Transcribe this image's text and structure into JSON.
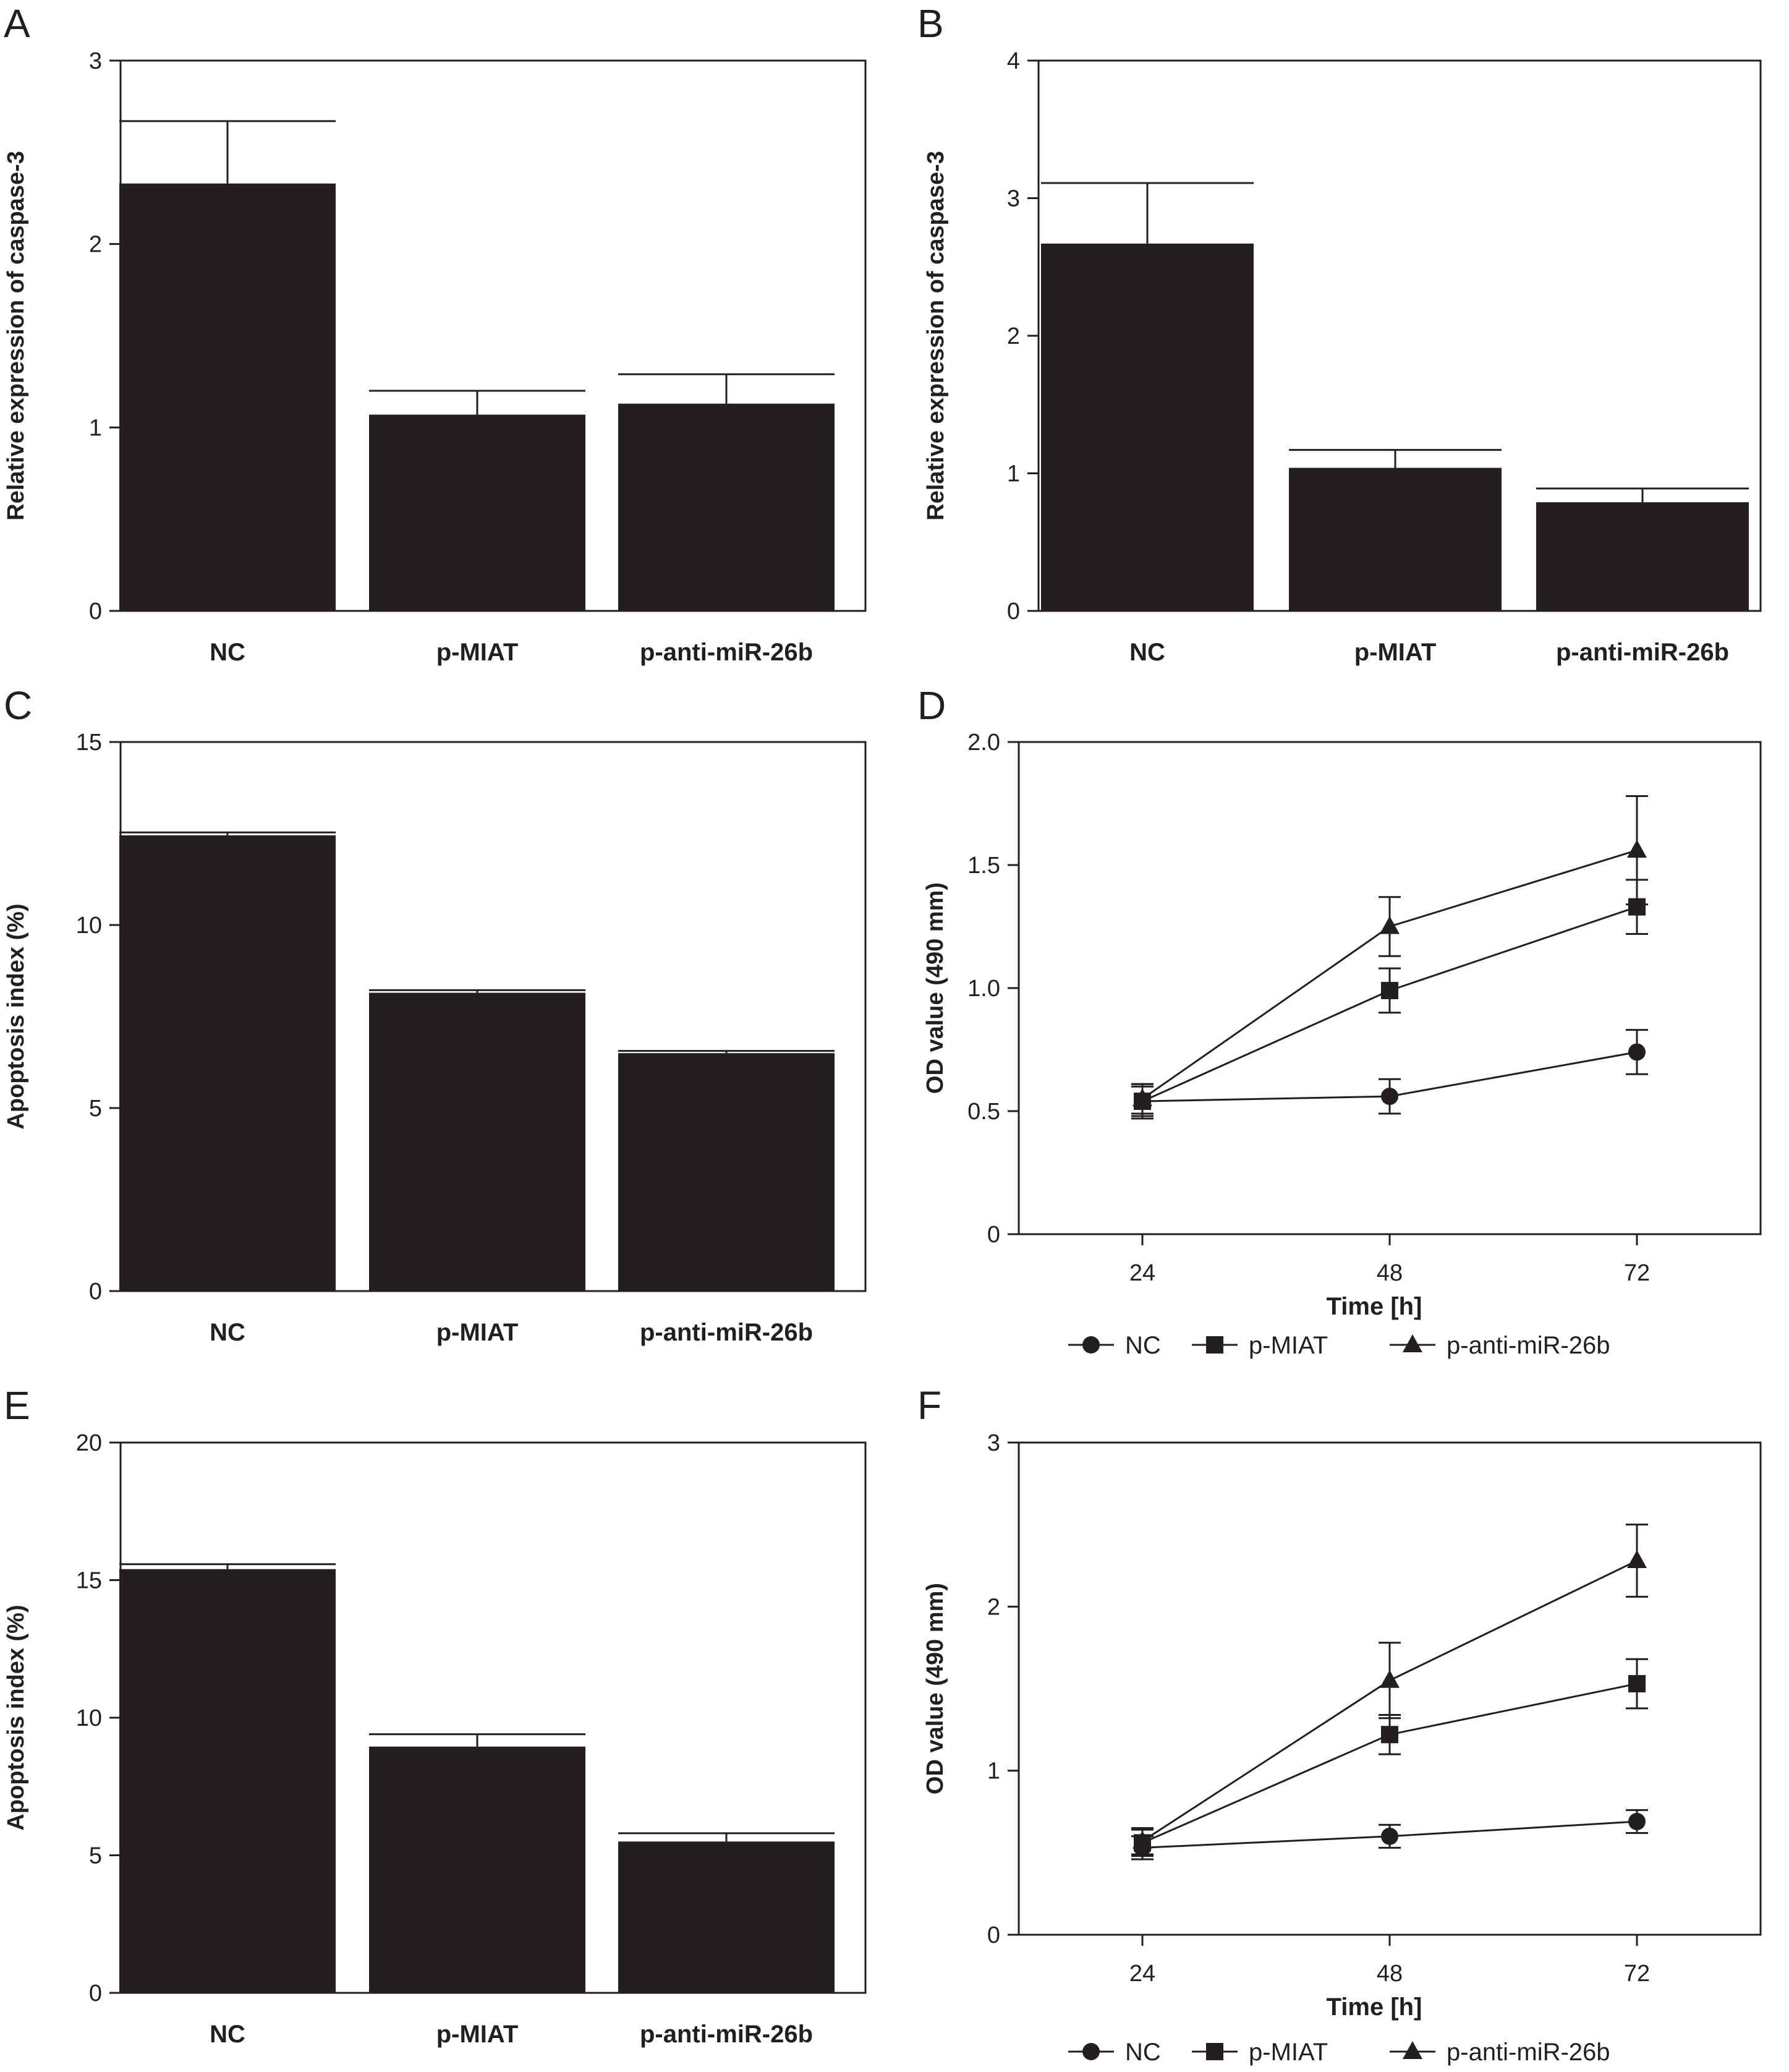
{
  "colors": {
    "bar": "#231f20",
    "axis": "#231f20",
    "background": "#ffffff"
  },
  "chart_data": [
    {
      "panel": "A",
      "type": "bar",
      "categories": [
        "NC",
        "p-MIAT",
        "p-anti-miR-26b"
      ],
      "values": [
        2.33,
        1.07,
        1.13
      ],
      "errors": [
        0.34,
        0.13,
        0.16
      ],
      "ylabel": "Relative expression of caspase-3",
      "xlabel": "",
      "ylim": [
        0,
        3
      ],
      "yticks": [
        "0",
        "1",
        "2",
        "3"
      ],
      "grid": false
    },
    {
      "panel": "B",
      "type": "bar",
      "categories": [
        "NC",
        "p-MIAT",
        "p-anti-miR-26b"
      ],
      "values": [
        2.67,
        1.04,
        0.79
      ],
      "errors": [
        0.44,
        0.13,
        0.1
      ],
      "ylabel": "Relative expression of caspase-3",
      "xlabel": "",
      "ylim": [
        0,
        4
      ],
      "yticks": [
        "0",
        "1",
        "2",
        "3",
        "4"
      ],
      "grid": false
    },
    {
      "panel": "C",
      "type": "bar",
      "categories": [
        "NC",
        "p-MIAT",
        "p-anti-miR-26b"
      ],
      "values": [
        12.45,
        8.15,
        6.5
      ],
      "errors": [
        0.08,
        0.07,
        0.06
      ],
      "ylabel": "Apoptosis index (%)",
      "xlabel": "",
      "ylim": [
        0,
        15
      ],
      "yticks": [
        "0",
        "5",
        "10",
        "15"
      ],
      "grid": false
    },
    {
      "panel": "D",
      "type": "line",
      "x": [
        24,
        48,
        72
      ],
      "xticks": [
        "24",
        "48",
        "72"
      ],
      "xlim": [
        12,
        84
      ],
      "series": [
        {
          "name": "NC",
          "marker": "circle",
          "values": [
            0.54,
            0.56,
            0.74
          ],
          "errors": [
            0.07,
            0.07,
            0.09
          ]
        },
        {
          "name": "p-MIAT",
          "marker": "square",
          "values": [
            0.54,
            0.99,
            1.33
          ],
          "errors": [
            0.06,
            0.09,
            0.11
          ]
        },
        {
          "name": "p-anti-miR-26b",
          "marker": "triangle",
          "values": [
            0.55,
            1.25,
            1.56
          ],
          "errors": [
            0.06,
            0.12,
            0.22
          ]
        }
      ],
      "ylabel": "OD value (490 mm)",
      "xlabel": "Time [h]",
      "ylim": [
        0,
        2
      ],
      "yticks": [
        "0",
        "0.5",
        "1.0",
        "1.5",
        "2.0"
      ],
      "legend": "bottom",
      "grid": false
    },
    {
      "panel": "E",
      "type": "bar",
      "categories": [
        "NC",
        "p-MIAT",
        "p-anti-miR-26b"
      ],
      "values": [
        15.4,
        8.95,
        5.5
      ],
      "errors": [
        0.18,
        0.45,
        0.3
      ],
      "ylabel": "Apoptosis index (%)",
      "xlabel": "",
      "ylim": [
        0,
        20
      ],
      "yticks": [
        "0",
        "5",
        "10",
        "15",
        "20"
      ],
      "grid": false
    },
    {
      "panel": "F",
      "type": "line",
      "x": [
        24,
        48,
        72
      ],
      "xticks": [
        "24",
        "48",
        "72"
      ],
      "xlim": [
        12,
        84
      ],
      "series": [
        {
          "name": "NC",
          "marker": "circle",
          "values": [
            0.53,
            0.6,
            0.69
          ],
          "errors": [
            0.07,
            0.07,
            0.07
          ]
        },
        {
          "name": "p-MIAT",
          "marker": "square",
          "values": [
            0.56,
            1.22,
            1.53
          ],
          "errors": [
            0.08,
            0.12,
            0.15
          ]
        },
        {
          "name": "p-anti-miR-26b",
          "marker": "triangle",
          "values": [
            0.57,
            1.55,
            2.28
          ],
          "errors": [
            0.08,
            0.23,
            0.22
          ]
        }
      ],
      "ylabel": "OD value (490 mm)",
      "xlabel": "Time [h]",
      "ylim": [
        0,
        3
      ],
      "yticks": [
        "0",
        "1",
        "2",
        "3"
      ],
      "legend": "bottom",
      "grid": false
    }
  ]
}
